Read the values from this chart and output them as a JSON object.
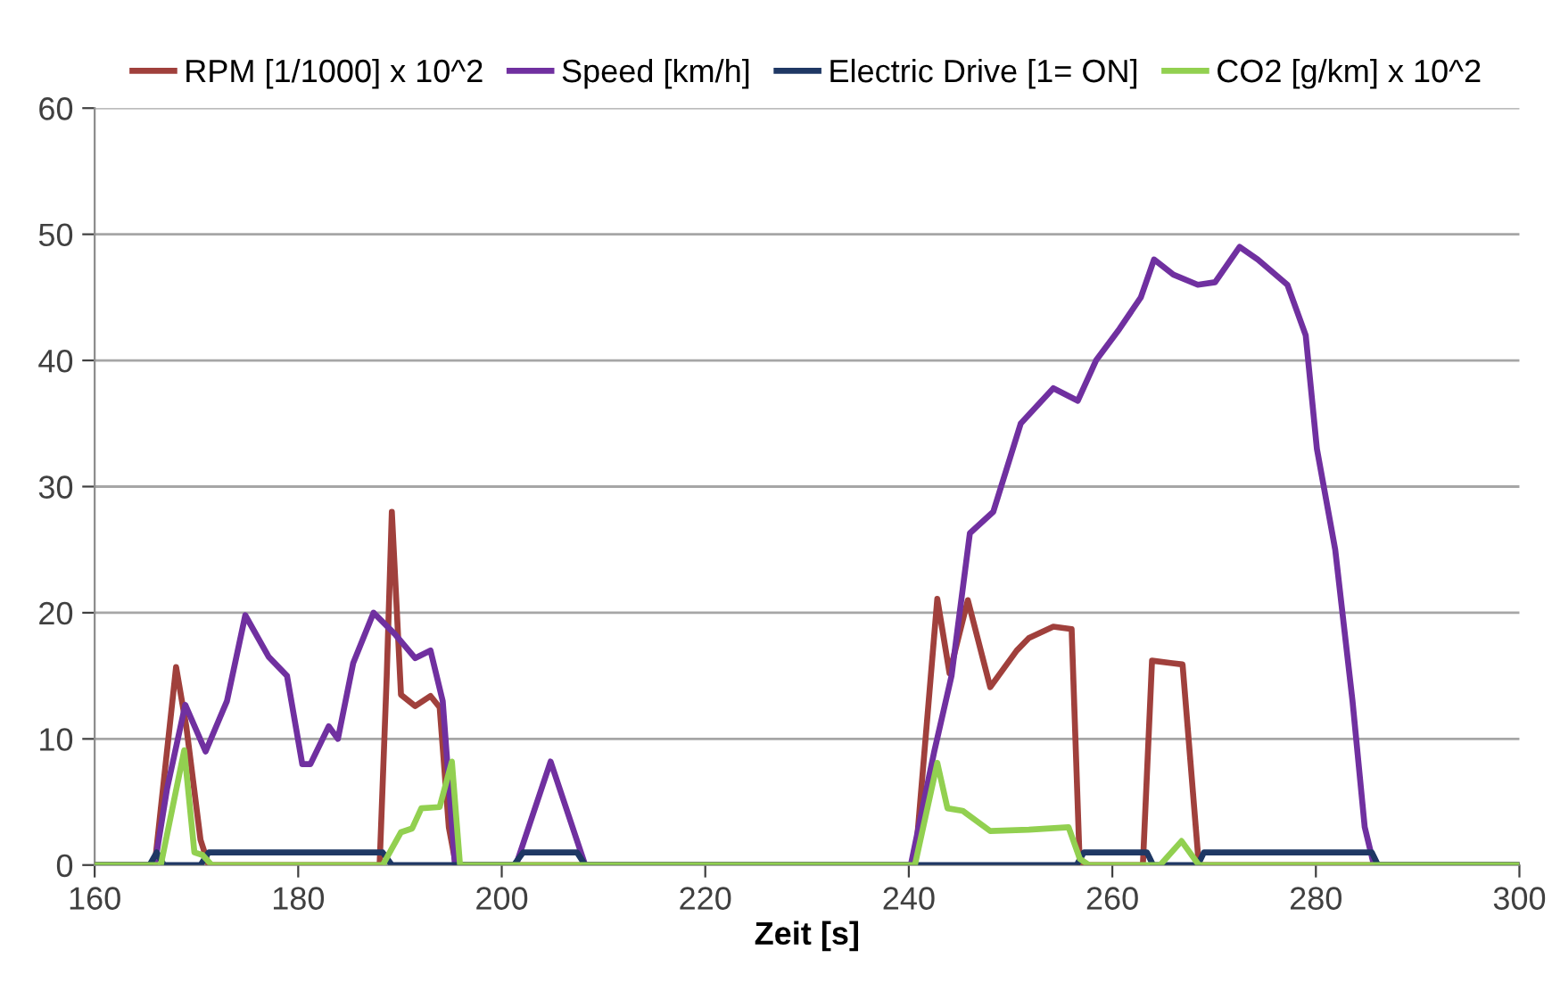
{
  "chart_data": {
    "type": "line",
    "xlabel": "Zeit [s]",
    "xlim": [
      160,
      300
    ],
    "xticks": [
      160,
      180,
      200,
      220,
      240,
      260,
      280,
      300
    ],
    "ylim": [
      0,
      60
    ],
    "yticks": [
      0,
      10,
      20,
      30,
      40,
      50,
      60
    ],
    "grid": "y",
    "legend": "top",
    "marker": "none",
    "line_style": "solid",
    "series": [
      {
        "name": "RPM [1/1000] x 10^2",
        "color": "#a0403c",
        "x": [
          160,
          165.9,
          168,
          169,
          170.4,
          171.2,
          188,
          188.7,
          189.2,
          189.7,
          190.1,
          191.5,
          193,
          193.9,
          194.8,
          195.5,
          240.6,
          242.8,
          244,
          245.8,
          248,
          250.6,
          251.8,
          254.2,
          256,
          256.8,
          263,
          263.9,
          265.9,
          266.9,
          268.5,
          300
        ],
        "values": [
          0,
          0,
          15.7,
          11,
          2,
          0,
          0,
          15,
          28,
          20,
          13.5,
          12.6,
          13.4,
          12.5,
          3,
          0,
          0,
          21.1,
          15.2,
          21,
          14.1,
          17,
          18,
          18.9,
          18.7,
          0,
          0,
          16.2,
          16,
          15.9,
          0,
          0
        ]
      },
      {
        "name": "Speed [km/h]",
        "color": "#7030a0",
        "x": [
          160,
          165.9,
          167.1,
          168.9,
          170.9,
          173,
          174.8,
          177.1,
          178.9,
          180.4,
          181.2,
          183,
          183.9,
          185.4,
          187.4,
          189.5,
          191.5,
          193,
          194.2,
          195.4,
          201.4,
          204.8,
          208.2,
          240.2,
          242.5,
          244.2,
          246,
          248.3,
          251,
          254.2,
          256.6,
          258.4,
          260.7,
          262.8,
          264.1,
          266,
          268.4,
          270.1,
          272.5,
          274.3,
          277.2,
          279,
          280.1,
          281.9,
          283.6,
          284.8,
          285.7,
          300
        ],
        "values": [
          0,
          0,
          6,
          12.7,
          9,
          13,
          19.8,
          16.5,
          15,
          8,
          8,
          11,
          10,
          16,
          20,
          18.3,
          16.4,
          17,
          13,
          0,
          0,
          8.2,
          0,
          0,
          9,
          15,
          26.3,
          28,
          35,
          37.8,
          36.8,
          40,
          42.5,
          45,
          48,
          46.8,
          46,
          46.2,
          49,
          48,
          46,
          42,
          33,
          25,
          13,
          3,
          0,
          0
        ]
      },
      {
        "name": "Electric Drive [1= ON]",
        "color": "#1f3864",
        "x": [
          160,
          165.4,
          166.1,
          166.8,
          170.4,
          171.2,
          188.3,
          189.2,
          201.2,
          202.1,
          207.4,
          208.2,
          256.5,
          257.2,
          263.4,
          264,
          268.4,
          269,
          285.5,
          286.1,
          300
        ],
        "values": [
          0,
          0,
          1,
          0,
          0,
          1,
          1,
          0,
          0,
          1,
          1,
          0,
          0,
          1,
          1,
          0,
          0,
          1,
          1,
          0,
          0
        ]
      },
      {
        "name": "CO2 [g/km] x 10^2",
        "color": "#92d050",
        "x": [
          160,
          166.5,
          168.8,
          169.8,
          170.6,
          171.5,
          188.3,
          190.1,
          191.2,
          192.1,
          193.9,
          195.1,
          195.9,
          240.6,
          242.8,
          243.8,
          245.3,
          248,
          251.8,
          255.7,
          256.8,
          257.7,
          264.7,
          266.8,
          268.5,
          300
        ],
        "values": [
          0,
          0,
          9.1,
          1,
          0.8,
          0,
          0,
          2.6,
          2.9,
          4.5,
          4.6,
          8.2,
          0,
          0,
          8.1,
          4.5,
          4.3,
          2.7,
          2.8,
          3,
          0.5,
          0,
          0,
          1.9,
          0,
          0
        ]
      }
    ]
  }
}
